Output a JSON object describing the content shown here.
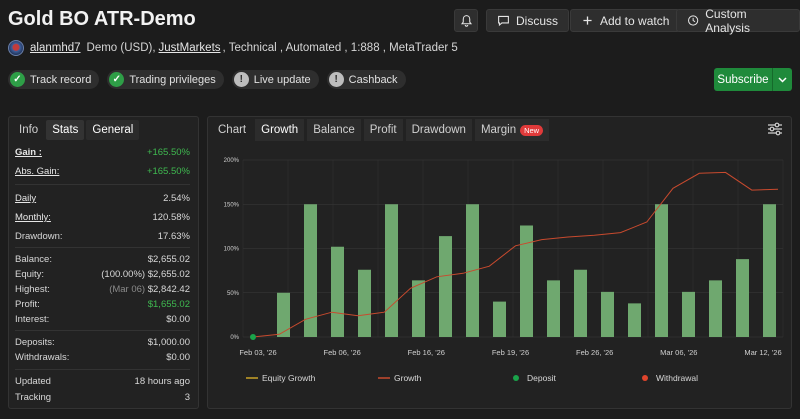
{
  "header": {
    "title": "Gold BO ATR-Demo",
    "buttons": {
      "discuss": "Discuss",
      "watch": "Add to watch",
      "analysis": "Custom Analysis"
    }
  },
  "account": {
    "username": "alanmhd7",
    "details_a": "Demo (USD),",
    "broker": "JustMarkets",
    "details_b": ", Technical , Automated , 1:888 , MetaTrader 5"
  },
  "badges": [
    {
      "label": "Track record",
      "status": "verified",
      "icon": "check-icon"
    },
    {
      "label": "Trading privileges",
      "status": "verified",
      "icon": "check-icon"
    },
    {
      "label": "Live update",
      "status": "info",
      "icon": "exclamation-icon"
    },
    {
      "label": "Cashback",
      "status": "info",
      "icon": "exclamation-icon"
    }
  ],
  "subscribe_label": "Subscribe",
  "left_tabs": [
    "Info",
    "Stats",
    "General"
  ],
  "stats": {
    "gain": {
      "label": "Gain :",
      "value": "+165.50%"
    },
    "abs_gain": {
      "label": "Abs. Gain:",
      "value": "+165.50%"
    },
    "daily": {
      "label": "Daily",
      "value": "2.54%"
    },
    "monthly": {
      "label": "Monthly:",
      "value": "120.58%"
    },
    "drawdown": {
      "label": "Drawdown:",
      "value": "17.63%"
    },
    "balance": {
      "label": "Balance:",
      "value": "$2,655.02"
    },
    "equity": {
      "label": "Equity:",
      "note": "(100.00%)",
      "value": "$2,655.02"
    },
    "highest": {
      "label": "Highest:",
      "note": "(Mar 06)",
      "value": "$2,842.42"
    },
    "profit": {
      "label": "Profit:",
      "value": "$1,655.02"
    },
    "interest": {
      "label": "Interest:",
      "value": "$0.00"
    },
    "deposits": {
      "label": "Deposits:",
      "value": "$1,000.00"
    },
    "withdrawals": {
      "label": "Withdrawals:",
      "value": "$0.00"
    },
    "updated": {
      "label": "Updated",
      "value": "18 hours ago"
    },
    "tracking": {
      "label": "Tracking",
      "value": "3"
    }
  },
  "right_tabs": {
    "chart": "Chart",
    "growth": "Growth",
    "balance": "Balance",
    "profit": "Profit",
    "drawdown": "Drawdown",
    "margin": "Margin",
    "new": "New"
  },
  "colors": {
    "bar": "#6fa86f",
    "growth_line": "#c84a2e",
    "equity_line": "#c9a227",
    "deposit": "#1aa34a",
    "withdrawal": "#e0442c",
    "accent_green": "#1f8a3b"
  },
  "chart_data": {
    "type": "bar",
    "ylim": [
      0,
      200
    ],
    "y_ticks": [
      "0%",
      "50%",
      "100%",
      "150%",
      "200%"
    ],
    "x_labels": [
      "Feb 03, '26",
      "Feb 06, '26",
      "Feb 16, '26",
      "Feb 19, '26",
      "Feb 26, '26",
      "Mar 06, '26",
      "Mar 12, '26"
    ],
    "bars": [
      0,
      50,
      150,
      102,
      76,
      150,
      64,
      114,
      150,
      40,
      126,
      64,
      76,
      51,
      38,
      150,
      51,
      64,
      88,
      150
    ],
    "growth": [
      0,
      3,
      20,
      28,
      24,
      28,
      55,
      68,
      72,
      80,
      103,
      110,
      113,
      115,
      118,
      130,
      168,
      185,
      186,
      166,
      167
    ],
    "legend": [
      "Equity Growth",
      "Growth",
      "Deposit",
      "Withdrawal"
    ]
  }
}
